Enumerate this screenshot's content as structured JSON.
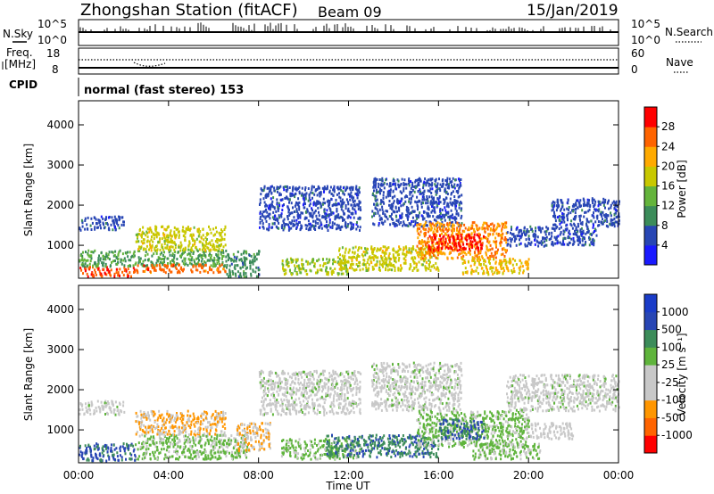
{
  "header": {
    "station": "Zhongshan Station (fitACF)",
    "beam": "Beam 09",
    "date": "15/Jan/2019"
  },
  "top_panels": {
    "nsky_label": "N.Sky",
    "nsky_ticks": [
      "10^5",
      "10^0"
    ],
    "nsearch_label": "N.Search",
    "nsearch_ticks": [
      "10^5",
      "10^0"
    ],
    "freq_label_1": "Freq.",
    "freq_label_2": "[MHz]",
    "freq_ticks": [
      "18",
      "8"
    ],
    "nave_label": "Nave",
    "nave_ticks": [
      "60",
      "0"
    ],
    "cpid_label": "CPID",
    "cpid_text": "normal (fast stereo) 153"
  },
  "colors": {
    "power_scale": [
      "#1a1aff",
      "#2846b4",
      "#3c8c5a",
      "#64b43c",
      "#c8c800",
      "#ffaa00",
      "#ff6400",
      "#ff0000"
    ],
    "velocity_scale": [
      "#ff0000",
      "#ff6400",
      "#ff9600",
      "#c8c8c8",
      "#c8c8c8",
      "#5fb43c",
      "#3c8c5a",
      "#2846b4",
      "#1a3cc8"
    ]
  },
  "chart_data": [
    {
      "type": "heatmap",
      "name": "power",
      "ylabel": "Slant Range [km]",
      "yticks": [
        "1000",
        "2000",
        "3000",
        "4000"
      ],
      "ylim": [
        180,
        4600
      ],
      "xticks": [
        "00:00",
        "04:00",
        "08:00",
        "12:00",
        "16:00",
        "20:00",
        "00:00"
      ],
      "xlim": [
        0,
        24
      ],
      "colorbar_label": "Power [dB]",
      "colorbar_ticks": [
        "4",
        "8",
        "12",
        "16",
        "20",
        "24",
        "28"
      ],
      "colorbar_range": [
        0,
        32
      ],
      "regions": [
        {
          "t": [
            0.0,
            2.0
          ],
          "r": [
            1400,
            1750
          ],
          "v": 6
        },
        {
          "t": [
            0.0,
            2.5
          ],
          "r": [
            250,
            500
          ],
          "v": 28
        },
        {
          "t": [
            0.0,
            6.5
          ],
          "r": [
            500,
            900
          ],
          "v": 12
        },
        {
          "t": [
            2.5,
            6.5
          ],
          "r": [
            900,
            1500
          ],
          "v": 18
        },
        {
          "t": [
            2.5,
            6.5
          ],
          "r": [
            350,
            550
          ],
          "v": 26
        },
        {
          "t": [
            6.5,
            8.0
          ],
          "r": [
            250,
            900
          ],
          "v": 10
        },
        {
          "t": [
            8.0,
            12.5
          ],
          "r": [
            1400,
            2500
          ],
          "v": 6
        },
        {
          "t": [
            9.0,
            12.0
          ],
          "r": [
            300,
            700
          ],
          "v": 16
        },
        {
          "t": [
            11.5,
            16.0
          ],
          "r": [
            400,
            1000
          ],
          "v": 18
        },
        {
          "t": [
            13.0,
            17.0
          ],
          "r": [
            1500,
            2700
          ],
          "v": 6
        },
        {
          "t": [
            15.0,
            19.0
          ],
          "r": [
            700,
            1600
          ],
          "v": 24
        },
        {
          "t": [
            15.5,
            18.0
          ],
          "r": [
            900,
            1300
          ],
          "v": 30
        },
        {
          "t": [
            17.0,
            20.0
          ],
          "r": [
            300,
            700
          ],
          "v": 20
        },
        {
          "t": [
            19.0,
            23.0
          ],
          "r": [
            1000,
            1500
          ],
          "v": 6
        },
        {
          "t": [
            21.0,
            24.0
          ],
          "r": [
            1500,
            2200
          ],
          "v": 6
        }
      ]
    },
    {
      "type": "heatmap",
      "name": "velocity",
      "ylabel": "Slant Range [km]",
      "yticks": [
        "1000",
        "2000",
        "3000",
        "4000"
      ],
      "ylim": [
        180,
        4600
      ],
      "xticks": [
        "00:00",
        "04:00",
        "08:00",
        "12:00",
        "16:00",
        "20:00",
        "00:00"
      ],
      "xlim": [
        0,
        24
      ],
      "xlabel": "Time UT",
      "colorbar_label": "Velocity [m s⁻¹]",
      "colorbar_ticks": [
        "-1000",
        "-500",
        "-100",
        "-25",
        "25",
        "100",
        "500",
        "1000"
      ],
      "colorbar_range": [
        -1200,
        1200
      ],
      "regions": [
        {
          "t": [
            0.0,
            2.0
          ],
          "r": [
            1400,
            1750
          ],
          "v": 0
        },
        {
          "t": [
            0.0,
            2.5
          ],
          "r": [
            250,
            700
          ],
          "v": 700
        },
        {
          "t": [
            2.5,
            6.5
          ],
          "r": [
            900,
            1500
          ],
          "v": -400
        },
        {
          "t": [
            2.5,
            7.5
          ],
          "r": [
            300,
            900
          ],
          "v": 200
        },
        {
          "t": [
            7.0,
            8.5
          ],
          "r": [
            500,
            1200
          ],
          "v": -400
        },
        {
          "t": [
            8.0,
            12.5
          ],
          "r": [
            1400,
            2500
          ],
          "v": 0
        },
        {
          "t": [
            9.0,
            12.5
          ],
          "r": [
            300,
            800
          ],
          "v": 200
        },
        {
          "t": [
            11.0,
            16.0
          ],
          "r": [
            350,
            900
          ],
          "v": 600
        },
        {
          "t": [
            13.0,
            17.0
          ],
          "r": [
            1500,
            2700
          ],
          "v": 0
        },
        {
          "t": [
            15.0,
            20.0
          ],
          "r": [
            600,
            1500
          ],
          "v": 200
        },
        {
          "t": [
            16.0,
            18.0
          ],
          "r": [
            800,
            1300
          ],
          "v": 700
        },
        {
          "t": [
            17.5,
            20.5
          ],
          "r": [
            300,
            700
          ],
          "v": 200
        },
        {
          "t": [
            19.0,
            24.0
          ],
          "r": [
            1500,
            2400
          ],
          "v": 0
        },
        {
          "t": [
            20.0,
            22.0
          ],
          "r": [
            800,
            1200
          ],
          "v": -100
        }
      ]
    }
  ]
}
